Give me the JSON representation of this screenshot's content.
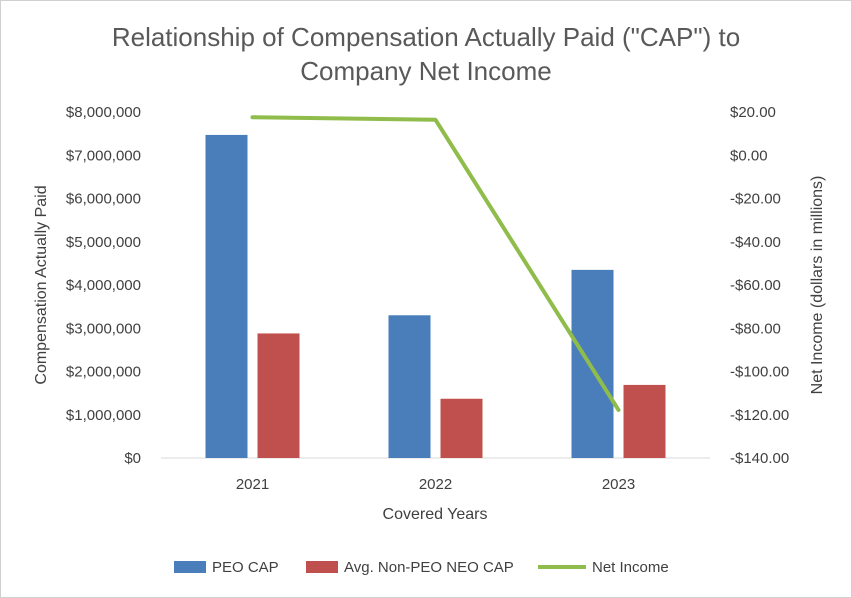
{
  "chart_data": {
    "type": "bar",
    "title_lines": [
      "Relationship of Compensation Actually Paid (\"CAP\") to",
      "Company Net Income"
    ],
    "xlabel": "Covered Years",
    "ylabel": "Compensation Actually Paid",
    "y2label": "Net Income (dollars in millions)",
    "categories": [
      "2021",
      "2022",
      "2023"
    ],
    "ylim": [
      0,
      8000000
    ],
    "y_ticks": [
      0,
      1000000,
      2000000,
      3000000,
      4000000,
      5000000,
      6000000,
      7000000,
      8000000
    ],
    "y_tick_labels": [
      "$0",
      "$1,000,000",
      "$2,000,000",
      "$3,000,000",
      "$4,000,000",
      "$5,000,000",
      "$6,000,000",
      "$7,000,000",
      "$8,000,000"
    ],
    "y2lim": [
      -140,
      20
    ],
    "y2_ticks": [
      -140,
      -120,
      -100,
      -80,
      -60,
      -40,
      -20,
      0,
      20
    ],
    "y2_tick_labels": [
      "-$140.00",
      "-$120.00",
      "-$100.00",
      "-$80.00",
      "-$60.00",
      "-$40.00",
      "-$20.00",
      "$0.00",
      "$20.00"
    ],
    "series": [
      {
        "name": "PEO CAP",
        "kind": "bar",
        "axis": "left",
        "color": "#4a7ebb",
        "values": [
          7470000,
          3300000,
          4350000
        ]
      },
      {
        "name": "Avg. Non-PEO NEO CAP",
        "kind": "bar",
        "axis": "left",
        "color": "#c0504d",
        "values": [
          2880000,
          1370000,
          1690000
        ]
      },
      {
        "name": "Net Income",
        "kind": "line",
        "axis": "right",
        "color": "#8fbc4a",
        "values": [
          17.6,
          16.4,
          -117.8
        ]
      }
    ],
    "legend_position": "bottom"
  }
}
